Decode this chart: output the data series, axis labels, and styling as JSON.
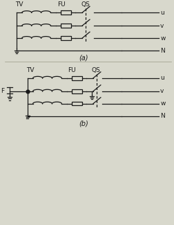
{
  "bg_color": "#d8d8cc",
  "line_color": "#1a1a1a",
  "fig_width": 2.53,
  "fig_height": 3.25,
  "dpi": 100,
  "diagram_a": {
    "label": "(a)",
    "tv_label": "TV",
    "fu_label": "FU",
    "qs_label": "QS",
    "terminals": [
      "u",
      "v",
      "w",
      "N"
    ]
  },
  "diagram_b": {
    "label": "(b)",
    "tv_label": "TV",
    "fu_label": "FU",
    "qs_label": "QS",
    "terminals": [
      "u",
      "v",
      "w",
      "N"
    ],
    "f_label": "F"
  }
}
